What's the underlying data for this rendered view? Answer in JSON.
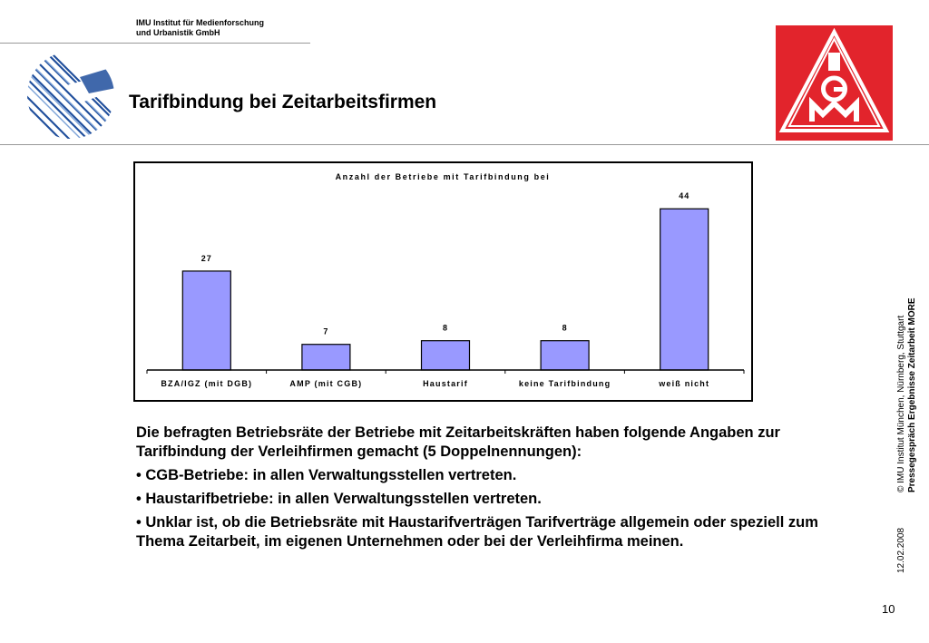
{
  "header": {
    "institute_line1": "IMU Institut für Medienforschung",
    "institute_line2": "und Urbanistik GmbH",
    "title": "Tarifbindung bei Zeitarbeitsfirmen",
    "logo_text": "IGM"
  },
  "chart_data": {
    "type": "bar",
    "title": "Anzahl der Betriebe mit Tarifbindung bei",
    "categories": [
      "BZA/IGZ (mit DGB)",
      "AMP (mit CGB)",
      "Haustarif",
      "keine Tarifbindung",
      "weiß nicht"
    ],
    "values": [
      27,
      7,
      8,
      8,
      44
    ],
    "data_labels": [
      "27",
      "7",
      "8",
      "8",
      "44"
    ],
    "xlabel": "",
    "ylabel": "",
    "ylim": [
      0,
      50
    ],
    "grid": false,
    "legend": "none",
    "bar_color": "#9999ff",
    "bar_edge_color": "#000000"
  },
  "body": {
    "intro": "Die befragten Betriebsräte der Betriebe mit Zeitarbeitskräften haben folgende Angaben zur Tarifbindung der Verleihfirmen gemacht (5 Doppelnennungen):",
    "bullets": [
      "• CGB-Betriebe: in allen Verwaltungsstellen vertreten.",
      "• Haustarifbetriebe: in allen Verwaltungsstellen vertreten.",
      "• Unklar ist, ob die Betriebsräte mit Haustarifverträgen Tarifverträge allgemein oder speziell zum Thema Zeitarbeit, im eigenen Unternehmen oder bei der Verleihfirma meinen."
    ]
  },
  "sidebar": {
    "credit": "© IMU Institut München, Nürnberg, Stuttgart",
    "event": "Pressegespräch Ergebnisse Zeitarbeit MORE",
    "date": "12.02.2008"
  },
  "footer": {
    "page_number": "10"
  },
  "colors": {
    "logo_red": "#e2242c",
    "globe_blue": "#1f4e9c"
  }
}
